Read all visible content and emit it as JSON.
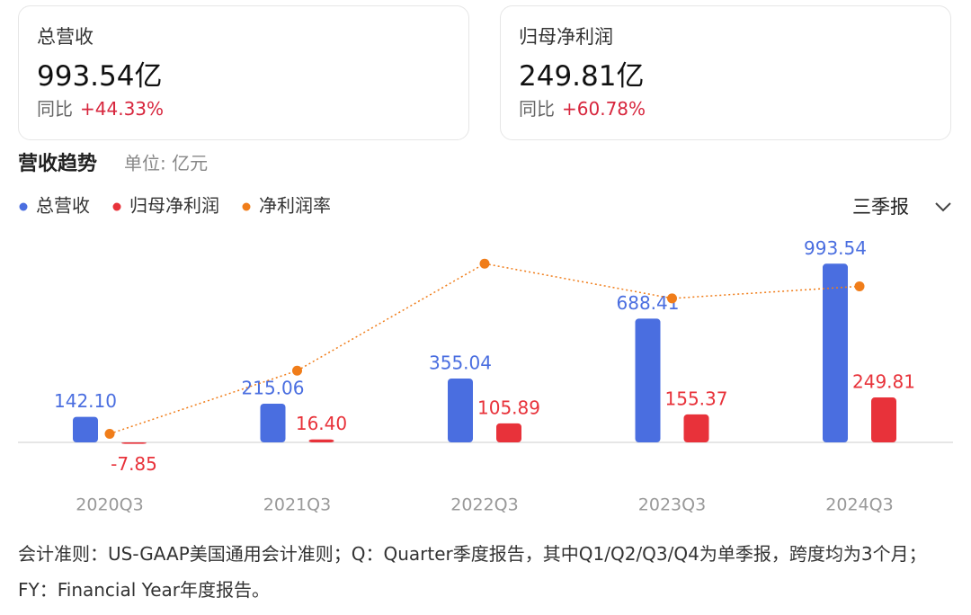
{
  "cards": [
    {
      "title": "总营收",
      "value": "993.54亿",
      "yoy_label": "同比",
      "yoy": "+44.33%"
    },
    {
      "title": "归母净利润",
      "value": "249.81亿",
      "yoy_label": "同比",
      "yoy": "+60.78%"
    }
  ],
  "section": {
    "title": "营收趋势",
    "unit": "单位: 亿元",
    "period": "三季报"
  },
  "chart_data": {
    "type": "bar",
    "categories": [
      "2020Q3",
      "2021Q3",
      "2022Q3",
      "2023Q3",
      "2024Q3"
    ],
    "series": [
      {
        "name": "总营收",
        "color": "#4a6ee0",
        "values": [
          142.1,
          215.06,
          355.04,
          688.41,
          993.54
        ],
        "value_labels": [
          "142.10",
          "215.06",
          "355.04",
          "688.41",
          "993.54"
        ]
      },
      {
        "name": "归母净利润",
        "color": "#e8323a",
        "values": [
          -7.85,
          16.4,
          105.89,
          155.37,
          249.81
        ],
        "value_labels": [
          "-7.85",
          "16.40",
          "105.89",
          "155.37",
          "249.81"
        ]
      },
      {
        "name": "净利润率",
        "type": "line",
        "axis": "y2",
        "color": "#f07d1a",
        "values": [
          -5.5,
          7.6,
          29.8,
          22.6,
          25.1
        ]
      }
    ],
    "ylim": [
      -100,
      1160
    ],
    "y2lim": [
      -11,
      36
    ]
  },
  "footnote": "会计准则：US-GAAP美国通用会计准则；Q：Quarter季度报告，其中Q1/Q2/Q3/Q4为单季报，跨度均为3个月；FY：Financial Year年度报告。"
}
